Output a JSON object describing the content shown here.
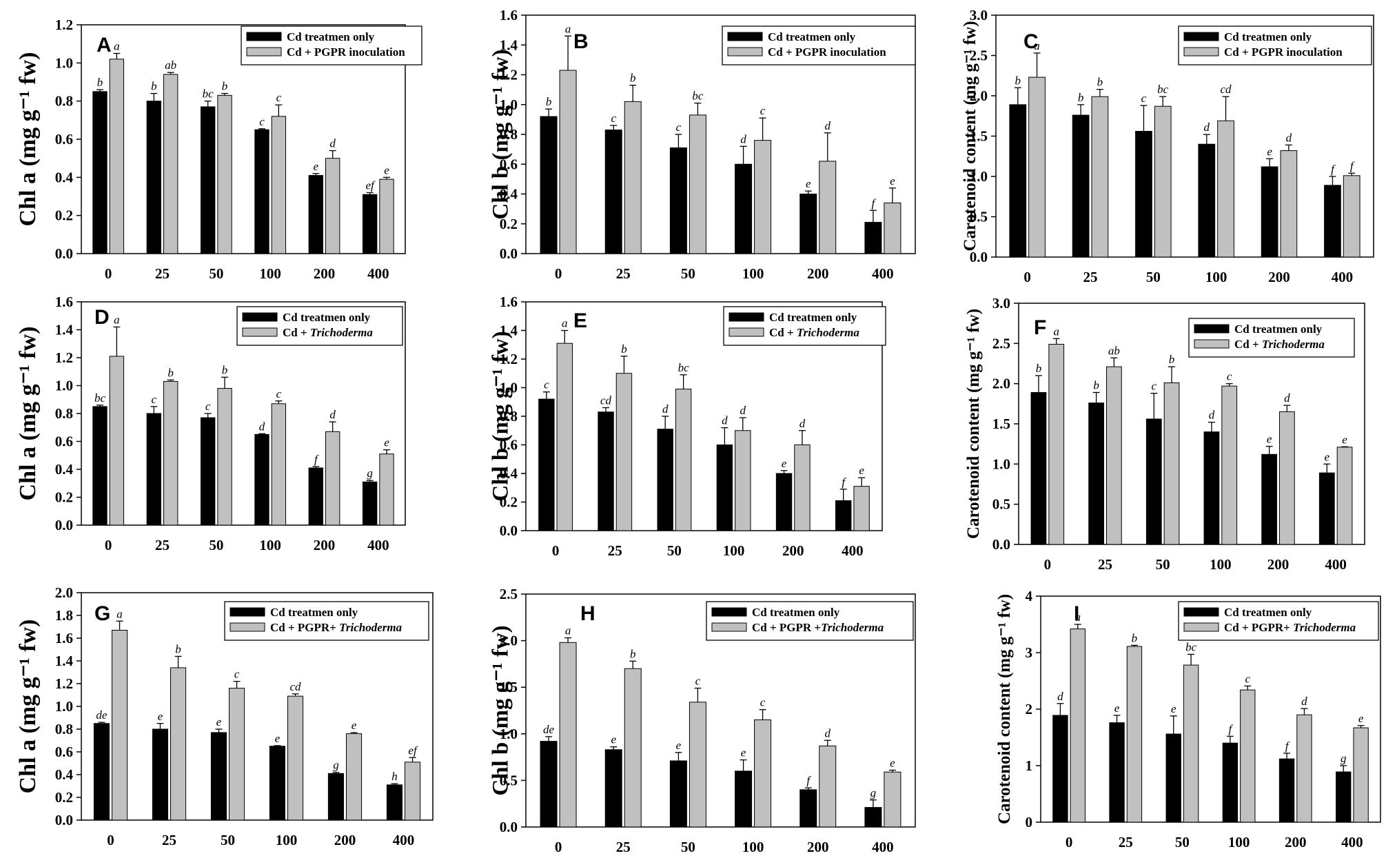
{
  "figure": {
    "x_categories": [
      "0",
      "25",
      "50",
      "100",
      "200",
      "400"
    ],
    "colors": {
      "cd_only": "#000000",
      "treated": "#c0c0c0",
      "error_bar": "#000000"
    }
  },
  "chart_data": [
    {
      "type": "bar",
      "panel": "A",
      "title": "",
      "ylabel": "Chl a (mg g⁻¹ fw)",
      "ylim": [
        0,
        1.2
      ],
      "yticks": [
        "0.0",
        "0.2",
        "0.4",
        "0.6",
        "0.8",
        "1.0",
        "1.2"
      ],
      "categories": [
        "0",
        "25",
        "50",
        "100",
        "200",
        "400"
      ],
      "series": [
        {
          "name": "Cd treatmen only",
          "values": [
            0.85,
            0.8,
            0.77,
            0.65,
            0.41,
            0.31
          ],
          "errors": [
            0.01,
            0.04,
            0.03,
            0.005,
            0.01,
            0.01
          ],
          "letters": [
            "b",
            "b",
            "bc",
            "c",
            "e",
            "ef"
          ]
        },
        {
          "name": "Cd + PGPR inoculation",
          "values": [
            1.02,
            0.94,
            0.83,
            0.72,
            0.5,
            0.39
          ],
          "errors": [
            0.03,
            0.01,
            0.01,
            0.06,
            0.04,
            0.01
          ],
          "letters": [
            "a",
            "ab",
            "b",
            "c",
            "d",
            "e"
          ]
        }
      ]
    },
    {
      "type": "bar",
      "panel": "B",
      "title": "",
      "ylabel": "Chl b (mg g⁻¹ fw)",
      "ylim": [
        0,
        1.6
      ],
      "yticks": [
        "0.0",
        "0.2",
        "0.4",
        "0.6",
        "0.8",
        "1.0",
        "1.2",
        "1.4",
        "1.6"
      ],
      "categories": [
        "0",
        "25",
        "50",
        "100",
        "200",
        "400"
      ],
      "series": [
        {
          "name": "Cd treatmen only",
          "values": [
            0.92,
            0.83,
            0.71,
            0.6,
            0.4,
            0.21
          ],
          "errors": [
            0.05,
            0.03,
            0.09,
            0.12,
            0.02,
            0.08
          ],
          "letters": [
            "b",
            "c",
            "c",
            "d",
            "e",
            "f"
          ]
        },
        {
          "name": "Cd + PGPR inoculation",
          "values": [
            1.23,
            1.02,
            0.93,
            0.76,
            0.62,
            0.34
          ],
          "errors": [
            0.23,
            0.11,
            0.08,
            0.15,
            0.19,
            0.1
          ],
          "letters": [
            "a",
            "b",
            "bc",
            "c",
            "d",
            "e"
          ]
        }
      ]
    },
    {
      "type": "bar",
      "panel": "C",
      "title": "",
      "ylabel": "Carotenoid content (mg g⁻¹ fw)",
      "ylim": [
        0,
        3.0
      ],
      "yticks": [
        "0.0",
        "0.5",
        "1.0",
        "1.5",
        "2.0",
        "2.5",
        "3.0"
      ],
      "categories": [
        "0",
        "25",
        "50",
        "100",
        "200",
        "400"
      ],
      "series": [
        {
          "name": "Cd treatmen only",
          "values": [
            1.89,
            1.76,
            1.56,
            1.4,
            1.12,
            0.89
          ],
          "errors": [
            0.21,
            0.13,
            0.32,
            0.12,
            0.1,
            0.11
          ],
          "letters": [
            "b",
            "b",
            "c",
            "d",
            "e",
            "f"
          ]
        },
        {
          "name": "Cd + PGPR inoculation",
          "values": [
            2.23,
            1.99,
            1.87,
            1.69,
            1.32,
            1.01
          ],
          "errors": [
            0.3,
            0.09,
            0.12,
            0.3,
            0.07,
            0.03
          ],
          "letters": [
            "a",
            "b",
            "bc",
            "cd",
            "d",
            "f"
          ]
        }
      ]
    },
    {
      "type": "bar",
      "panel": "D",
      "title": "",
      "ylabel": "Chl a (mg g⁻¹ fw)",
      "ylim": [
        0,
        1.6
      ],
      "yticks": [
        "0.0",
        "0.2",
        "0.4",
        "0.6",
        "0.8",
        "1.0",
        "1.2",
        "1.4",
        "1.6"
      ],
      "categories": [
        "0",
        "25",
        "50",
        "100",
        "200",
        "400"
      ],
      "series": [
        {
          "name": "Cd treatmen only",
          "values": [
            0.85,
            0.8,
            0.77,
            0.65,
            0.41,
            0.31
          ],
          "errors": [
            0.01,
            0.05,
            0.03,
            0.005,
            0.01,
            0.01
          ],
          "letters": [
            "bc",
            "c",
            "c",
            "d",
            "f",
            "g"
          ]
        },
        {
          "name": "Cd + Trichoderma",
          "values": [
            1.21,
            1.03,
            0.98,
            0.87,
            0.67,
            0.51
          ],
          "errors": [
            0.21,
            0.01,
            0.08,
            0.02,
            0.07,
            0.03
          ],
          "letters": [
            "a",
            "b",
            "b",
            "c",
            "d",
            "e"
          ]
        }
      ]
    },
    {
      "type": "bar",
      "panel": "E",
      "title": "",
      "ylabel": "Chl b (mg g⁻¹ fw)",
      "ylim": [
        0,
        1.6
      ],
      "yticks": [
        "0.0",
        "0.2",
        "0.4",
        "0.6",
        "0.8",
        "1.0",
        "1.2",
        "1.4",
        "1.6"
      ],
      "categories": [
        "0",
        "25",
        "50",
        "100",
        "200",
        "400"
      ],
      "series": [
        {
          "name": "Cd treatmen only",
          "values": [
            0.92,
            0.83,
            0.71,
            0.6,
            0.4,
            0.21
          ],
          "errors": [
            0.05,
            0.03,
            0.09,
            0.12,
            0.02,
            0.08
          ],
          "letters": [
            "c",
            "cd",
            "d",
            "d",
            "e",
            "f"
          ]
        },
        {
          "name": "Cd + Trichoderma",
          "values": [
            1.31,
            1.1,
            0.99,
            0.7,
            0.6,
            0.31
          ],
          "errors": [
            0.09,
            0.12,
            0.1,
            0.09,
            0.1,
            0.06
          ],
          "letters": [
            "a",
            "b",
            "bc",
            "d",
            "d",
            "e"
          ]
        }
      ]
    },
    {
      "type": "bar",
      "panel": "F",
      "title": "",
      "ylabel": "Carotenoid content (mg g⁻¹ fw)",
      "ylim": [
        0,
        3.0
      ],
      "yticks": [
        "0.0",
        "0.5",
        "1.0",
        "1.5",
        "2.0",
        "2.5",
        "3.0"
      ],
      "categories": [
        "0",
        "25",
        "50",
        "100",
        "200",
        "400"
      ],
      "series": [
        {
          "name": "Cd treatmen only",
          "values": [
            1.89,
            1.76,
            1.56,
            1.4,
            1.12,
            0.89
          ],
          "errors": [
            0.21,
            0.13,
            0.32,
            0.12,
            0.1,
            0.11
          ],
          "letters": [
            "b",
            "b",
            "c",
            "d",
            "e",
            "e"
          ]
        },
        {
          "name": "Cd + Trichoderma",
          "values": [
            2.49,
            2.21,
            2.01,
            1.97,
            1.65,
            1.21
          ],
          "errors": [
            0.07,
            0.11,
            0.2,
            0.03,
            0.08,
            0.005
          ],
          "letters": [
            "a",
            "ab",
            "b",
            "c",
            "d",
            "e"
          ]
        }
      ]
    },
    {
      "type": "bar",
      "panel": "G",
      "title": "",
      "ylabel": "Chl a (mg g⁻¹ fw)",
      "ylim": [
        0,
        2.0
      ],
      "yticks": [
        "0.0",
        "0.2",
        "0.4",
        "0.6",
        "0.8",
        "1.0",
        "1.2",
        "1.4",
        "1.6",
        "1.8",
        "2.0"
      ],
      "categories": [
        "0",
        "25",
        "50",
        "100",
        "200",
        "400"
      ],
      "series": [
        {
          "name": "Cd treatmen only",
          "values": [
            0.85,
            0.8,
            0.77,
            0.65,
            0.41,
            0.31
          ],
          "errors": [
            0.01,
            0.05,
            0.03,
            0.005,
            0.01,
            0.01
          ],
          "letters": [
            "de",
            "e",
            "e",
            "e",
            "g",
            "h"
          ]
        },
        {
          "name": "Cd + PGPR+ Trichoderma",
          "values": [
            1.67,
            1.34,
            1.16,
            1.09,
            0.76,
            0.51
          ],
          "errors": [
            0.08,
            0.1,
            0.06,
            0.02,
            0.01,
            0.04
          ],
          "letters": [
            "a",
            "b",
            "c",
            "cd",
            "e",
            "ef"
          ]
        }
      ]
    },
    {
      "type": "bar",
      "panel": "H",
      "title": "",
      "ylabel": "Chl b (mg g⁻¹ fw)",
      "ylim": [
        0,
        2.5
      ],
      "yticks": [
        "0.0",
        "0.5",
        "1.0",
        "1.5",
        "2.0",
        "2.5"
      ],
      "categories": [
        "0",
        "25",
        "50",
        "100",
        "200",
        "400"
      ],
      "series": [
        {
          "name": "Cd treatmen only",
          "values": [
            0.92,
            0.83,
            0.71,
            0.6,
            0.4,
            0.21
          ],
          "errors": [
            0.05,
            0.03,
            0.09,
            0.12,
            0.02,
            0.08
          ],
          "letters": [
            "de",
            "e",
            "e",
            "e",
            "f",
            "g"
          ]
        },
        {
          "name": "Cd + PGPR +Trichoderma",
          "values": [
            1.98,
            1.7,
            1.34,
            1.15,
            0.87,
            0.59
          ],
          "errors": [
            0.05,
            0.08,
            0.15,
            0.11,
            0.06,
            0.02
          ],
          "letters": [
            "a",
            "b",
            "c",
            "c",
            "d",
            "e"
          ]
        }
      ]
    },
    {
      "type": "bar",
      "panel": "I",
      "title": "",
      "ylabel": "Carotenoid content (mg g⁻¹ fw)",
      "ylim": [
        0,
        4
      ],
      "yticks": [
        "0",
        "1",
        "2",
        "3",
        "4"
      ],
      "categories": [
        "0",
        "25",
        "50",
        "100",
        "200",
        "400"
      ],
      "series": [
        {
          "name": "Cd treatmen only",
          "values": [
            1.89,
            1.76,
            1.56,
            1.4,
            1.12,
            0.89
          ],
          "errors": [
            0.21,
            0.13,
            0.32,
            0.12,
            0.1,
            0.11
          ],
          "letters": [
            "d",
            "e",
            "e",
            "f",
            "f",
            "g"
          ]
        },
        {
          "name": "Cd + PGPR+ Trichoderma",
          "values": [
            3.42,
            3.11,
            2.78,
            2.34,
            1.9,
            1.67
          ],
          "errors": [
            0.08,
            0.02,
            0.19,
            0.07,
            0.11,
            0.04
          ],
          "letters": [
            "a",
            "b",
            "bc",
            "c",
            "d",
            "e"
          ]
        }
      ]
    }
  ]
}
